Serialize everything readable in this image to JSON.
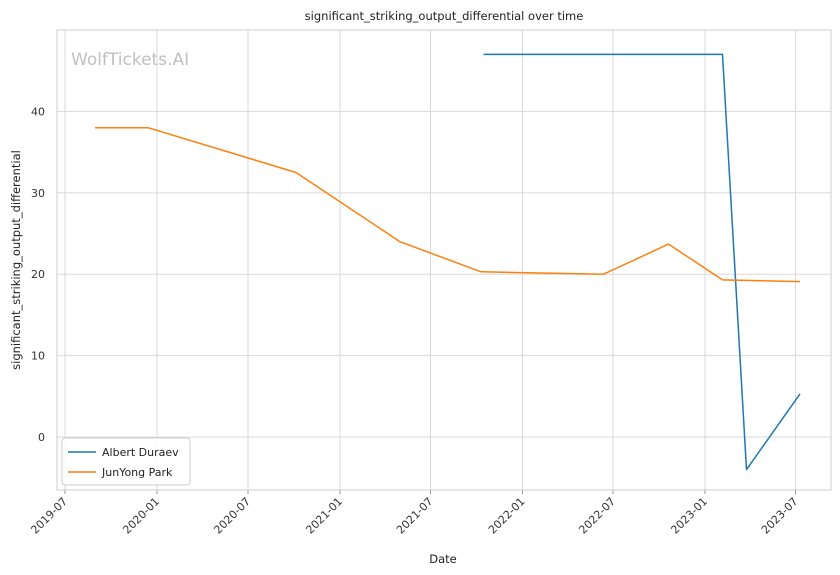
{
  "watermark": "WolfTickets.AI",
  "chart_data": {
    "type": "line",
    "title": "significant_striking_output_differential over time",
    "xlabel": "Date",
    "ylabel": "significant_striking_output_differential",
    "x_ticks": [
      "2019-07",
      "2020-01",
      "2020-07",
      "2021-01",
      "2021-07",
      "2022-01",
      "2022-07",
      "2023-01",
      "2023-07"
    ],
    "y_ticks": [
      0,
      10,
      20,
      30,
      40
    ],
    "xlim": [
      "2019-06-15",
      "2023-09-10"
    ],
    "ylim": [
      -6.5,
      50
    ],
    "grid": true,
    "legend_position": "lower-left",
    "series": [
      {
        "name": "Albert Duraev",
        "color": "#1f77b4",
        "points": [
          {
            "x": "2021-10-15",
            "y": 47.0
          },
          {
            "x": "2023-02-05",
            "y": 47.0
          },
          {
            "x": "2023-03-25",
            "y": -4.0
          },
          {
            "x": "2023-07-10",
            "y": 5.3
          }
        ]
      },
      {
        "name": "JunYong Park",
        "color": "#ff7f0e",
        "points": [
          {
            "x": "2019-08-30",
            "y": 38.0
          },
          {
            "x": "2019-12-14",
            "y": 38.0
          },
          {
            "x": "2020-10-05",
            "y": 32.5
          },
          {
            "x": "2021-05-01",
            "y": 24.0
          },
          {
            "x": "2021-10-10",
            "y": 20.3
          },
          {
            "x": "2022-06-12",
            "y": 20.0
          },
          {
            "x": "2022-10-20",
            "y": 23.7
          },
          {
            "x": "2023-02-05",
            "y": 19.3
          },
          {
            "x": "2023-07-10",
            "y": 19.1
          }
        ]
      }
    ]
  }
}
